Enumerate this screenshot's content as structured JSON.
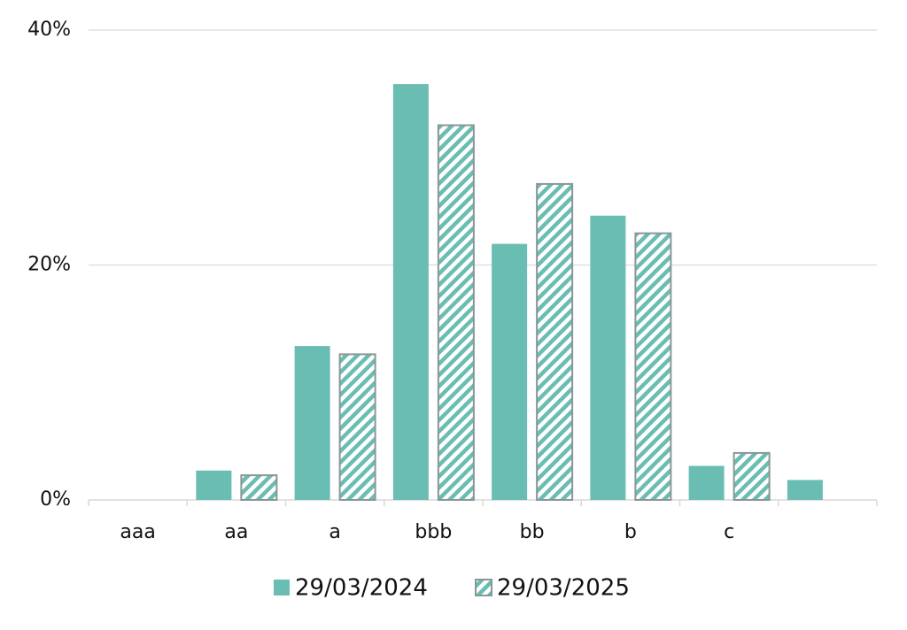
{
  "chart_data": {
    "type": "bar",
    "categories": [
      "aaa",
      "aa",
      "a",
      "bbb",
      "bb",
      "b",
      "c",
      null
    ],
    "series": [
      {
        "name": "29/03/2024",
        "color": "#6abdb3",
        "hatch": false,
        "values": [
          0,
          2.5,
          13.1,
          35.4,
          21.8,
          24.2,
          2.9,
          1.7
        ]
      },
      {
        "name": "29/03/2025",
        "color": "#6abdb3",
        "hatch": true,
        "values": [
          0,
          2.1,
          12.4,
          31.9,
          26.9,
          22.7,
          4.0,
          null
        ]
      }
    ],
    "ylim": [
      0,
      40
    ],
    "yticks": [
      {
        "value": 0,
        "label": "0%"
      },
      {
        "value": 20,
        "label": "20%"
      },
      {
        "value": 40,
        "label": "40%"
      }
    ],
    "grid": true,
    "legend": "bottom"
  }
}
